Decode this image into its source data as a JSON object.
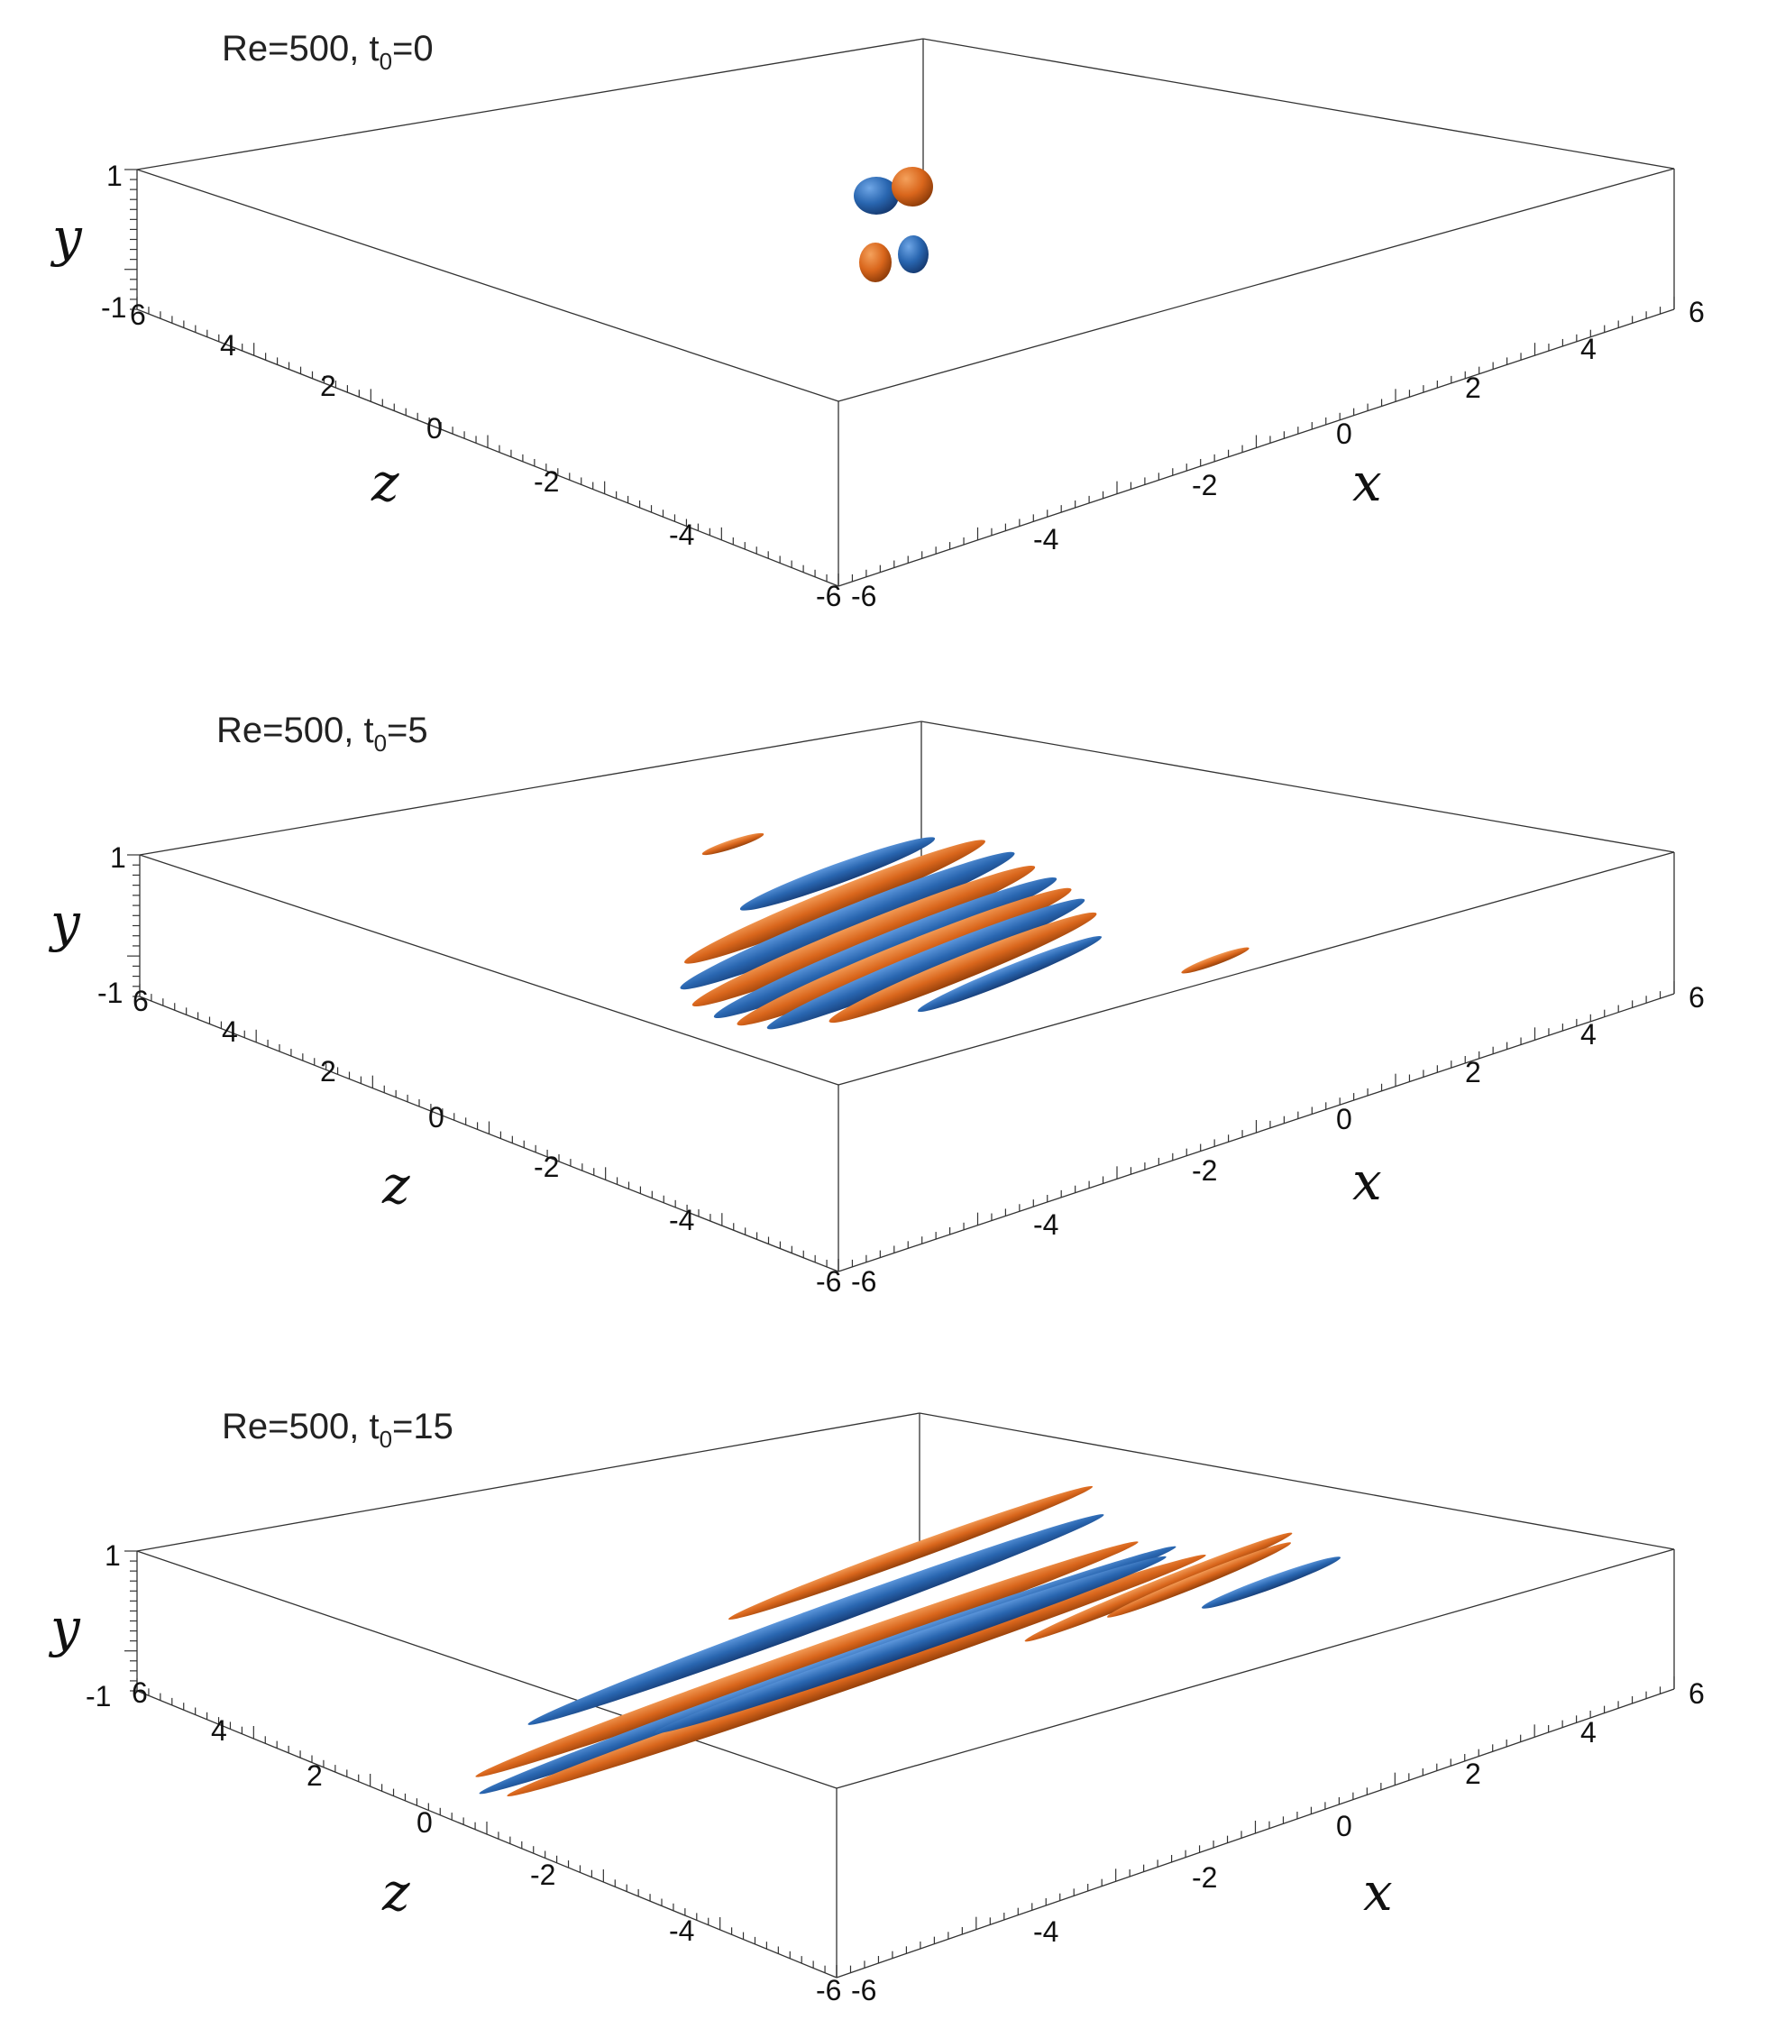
{
  "figure": {
    "colors": {
      "positive": "#d9661c",
      "negative": "#2966b0"
    },
    "panels": [
      {
        "title_prefix": "Re=500, t",
        "title_sub": "0",
        "title_suffix": "=0",
        "axes": {
          "x_label": "x",
          "y_label": "y",
          "z_label": "z"
        },
        "x_ticks": [
          "-6",
          "-4",
          "-2",
          "0",
          "2",
          "4",
          "6"
        ],
        "z_ticks": [
          "-6",
          "-4",
          "-2",
          "0",
          "2",
          "4",
          "6"
        ],
        "y_ticks": [
          "-1",
          "1"
        ]
      },
      {
        "title_prefix": "Re=500, t",
        "title_sub": "0",
        "title_suffix": "=5",
        "axes": {
          "x_label": "x",
          "y_label": "y",
          "z_label": "z"
        },
        "x_ticks": [
          "-6",
          "-4",
          "-2",
          "0",
          "2",
          "4",
          "6"
        ],
        "z_ticks": [
          "-6",
          "-4",
          "-2",
          "0",
          "2",
          "4",
          "6"
        ],
        "y_ticks": [
          "-1",
          "1"
        ]
      },
      {
        "title_prefix": "Re=500, t",
        "title_sub": "0",
        "title_suffix": "=15",
        "axes": {
          "x_label": "x",
          "y_label": "y",
          "z_label": "z"
        },
        "x_ticks": [
          "-6",
          "-4",
          "-2",
          "0",
          "2",
          "4",
          "6"
        ],
        "z_ticks": [
          "-6",
          "-4",
          "-2",
          "0",
          "2",
          "4",
          "6"
        ],
        "y_ticks": [
          "-1",
          "1"
        ]
      }
    ]
  }
}
